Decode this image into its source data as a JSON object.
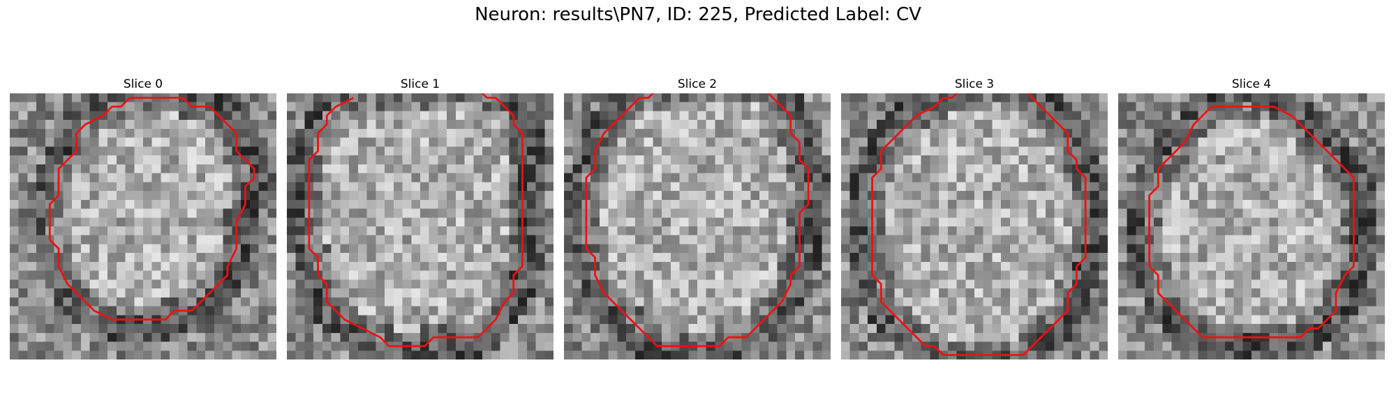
{
  "title": "Neuron: results\\PN7, ID: 225, Predicted Label: CV",
  "slices": [
    {
      "label": "Slice 0",
      "contour": [
        [
          13.5,
          0.5
        ],
        [
          19.5,
          0.5
        ],
        [
          20.5,
          1.5
        ],
        [
          22.5,
          1.5
        ],
        [
          24.5,
          3.5
        ],
        [
          25.5,
          4.5
        ],
        [
          25.5,
          6.5
        ],
        [
          26.5,
          7.5
        ],
        [
          27.5,
          8.5
        ],
        [
          27.5,
          9.5
        ],
        [
          26.5,
          10.5
        ],
        [
          26.5,
          12.5
        ],
        [
          25.5,
          14.5
        ],
        [
          25.5,
          17.5
        ],
        [
          24.5,
          19.5
        ],
        [
          24.5,
          20.5
        ],
        [
          23.5,
          21.5
        ],
        [
          21.5,
          23.5
        ],
        [
          20.5,
          24.5
        ],
        [
          18.5,
          24.5
        ],
        [
          17.5,
          25.5
        ],
        [
          11.5,
          25.5
        ],
        [
          9.5,
          24.5
        ],
        [
          7.5,
          22.5
        ],
        [
          6.5,
          21.5
        ],
        [
          5.5,
          19.5
        ],
        [
          5.5,
          17.5
        ],
        [
          4.5,
          16.5
        ],
        [
          4.5,
          14.5
        ],
        [
          4.5,
          12.5
        ],
        [
          5.5,
          11.5
        ],
        [
          5.5,
          8.5
        ],
        [
          6.5,
          7.5
        ],
        [
          7.5,
          6.5
        ],
        [
          7.5,
          4.5
        ],
        [
          8.5,
          3.5
        ],
        [
          10.5,
          2.5
        ],
        [
          11.5,
          1.5
        ],
        [
          12.5,
          1.5
        ],
        [
          13.5,
          0.5
        ]
      ],
      "closed": true,
      "seed": 11
    },
    {
      "label": "Slice 1",
      "contour": [
        [
          7.5,
          0.5
        ],
        [
          5.5,
          1.5
        ],
        [
          4.5,
          2.5
        ],
        [
          4.5,
          3.5
        ],
        [
          3.5,
          4.5
        ],
        [
          3.5,
          6.5
        ],
        [
          2.5,
          7.5
        ],
        [
          2.5,
          9.5
        ],
        [
          2.5,
          12.5
        ],
        [
          2.5,
          17.5
        ],
        [
          3.5,
          18.5
        ],
        [
          3.5,
          20.5
        ],
        [
          4.5,
          21.5
        ],
        [
          4.5,
          23.5
        ],
        [
          5.5,
          24.5
        ],
        [
          6.5,
          25.5
        ],
        [
          8.5,
          26.5
        ],
        [
          10.5,
          27.5
        ],
        [
          11.5,
          28.5
        ],
        [
          15.5,
          28.5
        ],
        [
          16.5,
          27.5
        ],
        [
          21.5,
          27.5
        ],
        [
          22.5,
          26.5
        ],
        [
          23.5,
          25.5
        ],
        [
          24.5,
          23.5
        ],
        [
          25.5,
          22.5
        ],
        [
          25.5,
          20.5
        ],
        [
          26.5,
          19.5
        ],
        [
          26.5,
          16.5
        ],
        [
          26.5,
          9.5
        ],
        [
          26.5,
          4.5
        ],
        [
          25.5,
          3.5
        ],
        [
          25.5,
          2.5
        ],
        [
          24.5,
          1.5
        ],
        [
          23.5,
          0.5
        ],
        [
          22.5,
          0.5
        ],
        [
          21.5,
          -0.5
        ]
      ],
      "closed": false,
      "seed": 23
    },
    {
      "label": "Slice 2",
      "contour": [
        [
          10.5,
          -0.5
        ],
        [
          9.5,
          0.5
        ],
        [
          8.5,
          0.5
        ],
        [
          6.5,
          2.5
        ],
        [
          5.5,
          3.5
        ],
        [
          4.5,
          4.5
        ],
        [
          3.5,
          6.5
        ],
        [
          3.5,
          8.5
        ],
        [
          2.5,
          9.5
        ],
        [
          2.5,
          10.5
        ],
        [
          2.5,
          14.5
        ],
        [
          2.5,
          17.5
        ],
        [
          3.5,
          18.5
        ],
        [
          3.5,
          20.5
        ],
        [
          4.5,
          22.5
        ],
        [
          5.5,
          23.5
        ],
        [
          6.5,
          24.5
        ],
        [
          7.5,
          25.5
        ],
        [
          8.5,
          26.5
        ],
        [
          9.5,
          27.5
        ],
        [
          10.5,
          28.5
        ],
        [
          17.5,
          28.5
        ],
        [
          18.5,
          27.5
        ],
        [
          20.5,
          27.5
        ],
        [
          21.5,
          26.5
        ],
        [
          22.5,
          25.5
        ],
        [
          23.5,
          24.5
        ],
        [
          24.5,
          23.5
        ],
        [
          25.5,
          21.5
        ],
        [
          25.5,
          20.5
        ],
        [
          26.5,
          19.5
        ],
        [
          26.5,
          16.5
        ],
        [
          26.5,
          13.5
        ],
        [
          27.5,
          12.5
        ],
        [
          27.5,
          10.5
        ],
        [
          27.5,
          8.5
        ],
        [
          26.5,
          7.5
        ],
        [
          26.5,
          5.5
        ],
        [
          25.5,
          4.5
        ],
        [
          25.5,
          2.5
        ],
        [
          24.5,
          1.5
        ],
        [
          23.5,
          0.5
        ],
        [
          22.5,
          -0.5
        ],
        [
          21.5,
          -0.5
        ]
      ],
      "closed": false,
      "seed": 37
    },
    {
      "label": "Slice 3",
      "contour": [
        [
          13.5,
          -0.5
        ],
        [
          12.5,
          0.5
        ],
        [
          11.5,
          0.5
        ],
        [
          10.5,
          1.5
        ],
        [
          8.5,
          2.5
        ],
        [
          7.5,
          3.5
        ],
        [
          6.5,
          4.5
        ],
        [
          5.5,
          5.5
        ],
        [
          4.5,
          6.5
        ],
        [
          4.5,
          8.5
        ],
        [
          3.5,
          9.5
        ],
        [
          3.5,
          10.5
        ],
        [
          3.5,
          12.5
        ],
        [
          3.5,
          16.5
        ],
        [
          3.5,
          20.5
        ],
        [
          4.5,
          21.5
        ],
        [
          4.5,
          23.5
        ],
        [
          5.5,
          24.5
        ],
        [
          6.5,
          25.5
        ],
        [
          7.5,
          26.5
        ],
        [
          8.5,
          27.5
        ],
        [
          9.5,
          28.5
        ],
        [
          10.5,
          28.5
        ],
        [
          11.5,
          29.5
        ],
        [
          20.5,
          29.5
        ],
        [
          21.5,
          28.5
        ],
        [
          22.5,
          27.5
        ],
        [
          23.5,
          26.5
        ],
        [
          24.5,
          25.5
        ],
        [
          25.5,
          24.5
        ],
        [
          25.5,
          22.5
        ],
        [
          26.5,
          21.5
        ],
        [
          26.5,
          19.5
        ],
        [
          27.5,
          18.5
        ],
        [
          27.5,
          16.5
        ],
        [
          27.5,
          12.5
        ],
        [
          27.5,
          9.5
        ],
        [
          26.5,
          8.5
        ],
        [
          26.5,
          7.5
        ],
        [
          25.5,
          6.5
        ],
        [
          25.5,
          4.5
        ],
        [
          24.5,
          3.5
        ],
        [
          23.5,
          2.5
        ],
        [
          22.5,
          1.5
        ],
        [
          21.5,
          0.5
        ],
        [
          20.5,
          -0.5
        ]
      ],
      "closed": false,
      "seed": 53
    },
    {
      "label": "Slice 4",
      "contour": [
        [
          10.5,
          1.5
        ],
        [
          17.5,
          1.5
        ],
        [
          19.5,
          2.5
        ],
        [
          20.5,
          3.5
        ],
        [
          21.5,
          4.5
        ],
        [
          22.5,
          5.5
        ],
        [
          24.5,
          7.5
        ],
        [
          25.5,
          8.5
        ],
        [
          26.5,
          9.5
        ],
        [
          26.5,
          11.5
        ],
        [
          26.5,
          14.5
        ],
        [
          26.5,
          18.5
        ],
        [
          26.5,
          19.5
        ],
        [
          25.5,
          20.5
        ],
        [
          24.5,
          22.5
        ],
        [
          24.5,
          24.5
        ],
        [
          23.5,
          25.5
        ],
        [
          22.5,
          26.5
        ],
        [
          21.5,
          26.5
        ],
        [
          20.5,
          27.5
        ],
        [
          18.5,
          27.5
        ],
        [
          14.5,
          27.5
        ],
        [
          9.5,
          27.5
        ],
        [
          8.5,
          26.5
        ],
        [
          7.5,
          25.5
        ],
        [
          6.5,
          24.5
        ],
        [
          5.5,
          23.5
        ],
        [
          4.5,
          22.5
        ],
        [
          4.5,
          20.5
        ],
        [
          3.5,
          19.5
        ],
        [
          3.5,
          17.5
        ],
        [
          3.5,
          12.5
        ],
        [
          3.5,
          11.5
        ],
        [
          4.5,
          10.5
        ],
        [
          4.5,
          8.5
        ],
        [
          5.5,
          7.5
        ],
        [
          6.5,
          6.5
        ],
        [
          7.5,
          5.5
        ],
        [
          8.5,
          3.5
        ],
        [
          9.5,
          2.5
        ],
        [
          10.5,
          1.5
        ]
      ],
      "closed": true,
      "seed": 71
    }
  ],
  "contour_color": "#ee1111"
}
